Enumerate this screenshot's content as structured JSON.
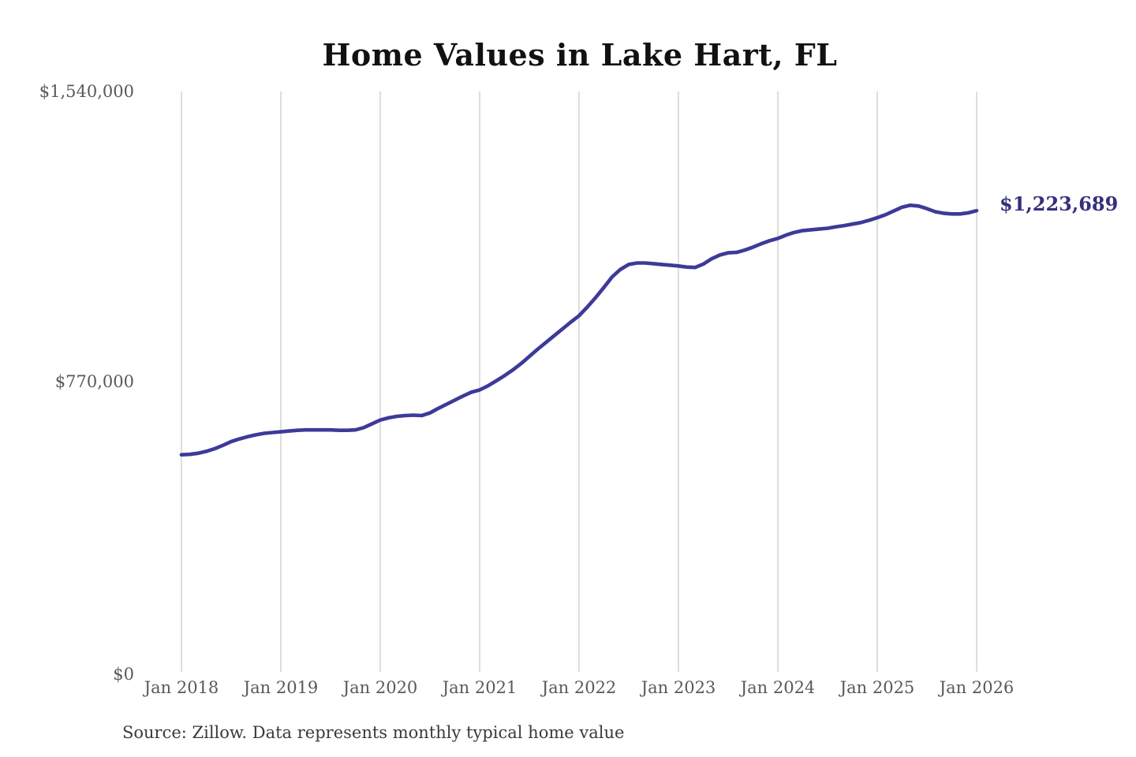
{
  "title": "Home Values in Lake Hart, FL",
  "source_note": "Source: Zillow. Data represents monthly typical home value",
  "colors": {
    "line": "#3d3a99",
    "annotation_text": "#33317d",
    "grid": "#cccccc",
    "axis_text": "#595959",
    "title_text": "#111111",
    "source_text": "#3a3a3a",
    "background": "#ffffff"
  },
  "chart_data": {
    "type": "line",
    "title": "Home Values in Lake Hart, FL",
    "series_name": "Monthly typical home value",
    "x_frequency": "monthly",
    "x_start": "2018-01",
    "x_end": "2026-01",
    "x_tick_labels": [
      "Jan 2018",
      "Jan 2019",
      "Jan 2020",
      "Jan 2021",
      "Jan 2022",
      "Jan 2023",
      "Jan 2024",
      "Jan 2025",
      "Jan 2026"
    ],
    "y_ticks": [
      {
        "label": "$0",
        "value": 0
      },
      {
        "label": "$770,000",
        "value": 770000
      },
      {
        "label": "$1,540,000",
        "value": 1540000
      }
    ],
    "ylim": [
      0,
      1540000
    ],
    "grid": "vertical-only",
    "legend": "none",
    "final_value": 1223689,
    "final_value_label": "$1,223,689",
    "values": [
      576000,
      577000,
      580000,
      585000,
      592000,
      601000,
      611000,
      618000,
      624000,
      629000,
      633000,
      635000,
      637000,
      639000,
      641000,
      642000,
      642000,
      642000,
      642000,
      641000,
      641000,
      642000,
      648000,
      658000,
      668000,
      674000,
      678000,
      680000,
      681000,
      680000,
      687000,
      699000,
      710000,
      721000,
      732000,
      742000,
      748000,
      759000,
      772000,
      786000,
      801000,
      818000,
      837000,
      856000,
      874000,
      892000,
      910000,
      928000,
      945000,
      968000,
      993000,
      1020000,
      1048000,
      1068000,
      1081000,
      1085000,
      1085000,
      1083000,
      1081000,
      1079000,
      1077000,
      1074000,
      1073000,
      1082000,
      1096000,
      1106000,
      1112000,
      1113000,
      1119000,
      1127000,
      1136000,
      1144000,
      1150000,
      1159000,
      1166000,
      1171000,
      1173000,
      1175000,
      1177000,
      1181000,
      1184000,
      1188000,
      1192000,
      1198000,
      1205000,
      1213000,
      1223000,
      1233000,
      1238000,
      1236000,
      1229000,
      1221000,
      1217000,
      1215000,
      1215000,
      1218000,
      1223689
    ]
  }
}
